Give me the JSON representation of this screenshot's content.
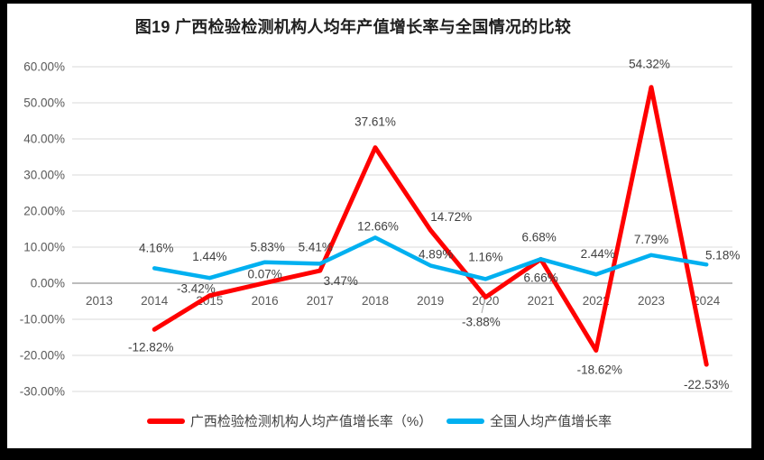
{
  "page": {
    "title": "图19 广西检验检测机构人均年产值增长率与全国情况的比较"
  },
  "chart_data": {
    "type": "line",
    "title": "图19 广西检验检测机构人均年产值增长率与全国情况的比较",
    "categories": [
      "2013",
      "2014",
      "2015",
      "2016",
      "2017",
      "2018",
      "2019",
      "2020",
      "2021",
      "2022",
      "2023",
      "2024"
    ],
    "series": [
      {
        "name": "广西检验检测机构人均产值增长率（%）",
        "color": "#FF0000",
        "values": [
          null,
          -12.82,
          -3.42,
          0.07,
          3.47,
          37.61,
          14.72,
          -3.88,
          6.66,
          -18.62,
          54.32,
          -22.53
        ],
        "data_labels": [
          "",
          "-12.82%",
          "-3.42%",
          "0.07%",
          "3.47%",
          "37.61%",
          "14.72%",
          "-3.88%",
          "6.66%",
          "-18.62%",
          "54.32%",
          "-22.53%"
        ]
      },
      {
        "name": "全国人均产值增长率",
        "color": "#00B0F0",
        "values": [
          null,
          4.16,
          1.44,
          5.83,
          5.41,
          12.66,
          4.89,
          1.16,
          6.68,
          2.44,
          7.79,
          5.18
        ],
        "data_labels": [
          "",
          "4.16%",
          "1.44%",
          "5.83%",
          "5.41%",
          "12.66%",
          "4.89%",
          "1.16%",
          "6.68%",
          "2.44%",
          "7.79%",
          "5.18%"
        ]
      }
    ],
    "ylim": [
      -30,
      60
    ],
    "ytick_step": 10,
    "ytick_labels": [
      "60.00%",
      "50.00%",
      "40.00%",
      "30.00%",
      "20.00%",
      "10.00%",
      "0.00%",
      "-10.00%",
      "-20.00%",
      "-30.00%"
    ],
    "grid": true,
    "legend_position": "bottom",
    "colors": {
      "gridline": "#D9D9D9",
      "zero_axis": "#A6A6A6",
      "tick_label": "#595959",
      "data_label": "#3f3f3f",
      "plot_background": "#FFFFFF",
      "frame": "#000000"
    }
  }
}
